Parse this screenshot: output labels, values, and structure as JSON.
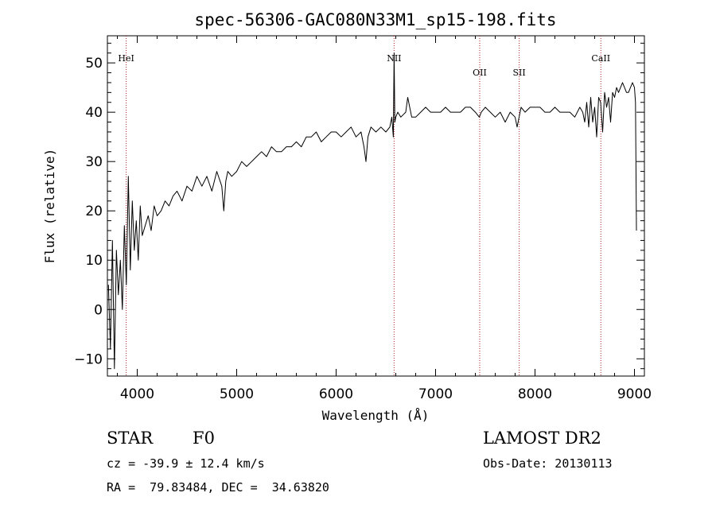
{
  "chart_data": {
    "type": "line",
    "title": "spec-56306-GAC080N33M1_sp15-198.fits",
    "xlabel": "Wavelength (Å)",
    "ylabel": "Flux (relative)",
    "xlim": [
      3700,
      9100
    ],
    "ylim": [
      -13.5,
      55.5
    ],
    "x_ticks": [
      4000,
      5000,
      6000,
      7000,
      8000,
      9000
    ],
    "y_ticks": [
      -10,
      0,
      10,
      20,
      30,
      40,
      50
    ],
    "grid": false,
    "legend": "none",
    "color": "#000000",
    "line_marker_color": "#b22222",
    "spectral_lines": [
      {
        "name": "HeI",
        "x": 3889
      },
      {
        "name": "NII",
        "x": 6583
      },
      {
        "name": "OII",
        "x": 7444
      },
      {
        "name": "SII",
        "x": 7841
      },
      {
        "name": "CaII",
        "x": 8662
      }
    ],
    "series": [
      {
        "x": [
          3710,
          3730,
          3750,
          3770,
          3790,
          3810,
          3830,
          3850,
          3870,
          3890,
          3910,
          3930,
          3950,
          3970,
          3990,
          4010,
          4030,
          4050,
          4080,
          4110,
          4140,
          4170,
          4200,
          4240,
          4280,
          4320,
          4360,
          4400,
          4450,
          4500,
          4550,
          4600,
          4650,
          4700,
          4750,
          4800,
          4850,
          4870,
          4890,
          4910,
          4950,
          5000,
          5050,
          5100,
          5150,
          5200,
          5250,
          5300,
          5350,
          5400,
          5450,
          5500,
          5550,
          5600,
          5650,
          5700,
          5750,
          5800,
          5850,
          5900,
          5950,
          6000,
          6050,
          6100,
          6150,
          6200,
          6250,
          6280,
          6300,
          6320,
          6350,
          6400,
          6450,
          6500,
          6540,
          6560,
          6575,
          6583,
          6590,
          6600,
          6620,
          6650,
          6700,
          6720,
          6740,
          6760,
          6800,
          6850,
          6900,
          6950,
          7000,
          7050,
          7100,
          7150,
          7200,
          7250,
          7300,
          7350,
          7400,
          7440,
          7460,
          7500,
          7550,
          7600,
          7650,
          7700,
          7750,
          7800,
          7820,
          7840,
          7860,
          7900,
          7950,
          8000,
          8050,
          8100,
          8150,
          8200,
          8250,
          8300,
          8350,
          8400,
          8450,
          8480,
          8500,
          8520,
          8540,
          8560,
          8580,
          8600,
          8620,
          8640,
          8660,
          8680,
          8700,
          8720,
          8740,
          8760,
          8780,
          8800,
          8820,
          8840,
          8860,
          8880,
          8900,
          8920,
          8940,
          8960,
          8980,
          9000,
          9010,
          9020
        ],
        "values": [
          5,
          -8,
          14,
          -12,
          12,
          3,
          10,
          0,
          17,
          5,
          27,
          8,
          22,
          12,
          18,
          10,
          21,
          15,
          17,
          19,
          16,
          21,
          19,
          20,
          22,
          21,
          23,
          24,
          22,
          25,
          24,
          27,
          25,
          27,
          24,
          28,
          25,
          20,
          26,
          28,
          27,
          28,
          30,
          29,
          30,
          31,
          32,
          31,
          33,
          32,
          32,
          33,
          33,
          34,
          33,
          35,
          35,
          36,
          34,
          35,
          36,
          36,
          35,
          36,
          37,
          35,
          36,
          33,
          30,
          35,
          37,
          36,
          37,
          36,
          37,
          39,
          35,
          52,
          38,
          39,
          40,
          39,
          40,
          43,
          41,
          39,
          39,
          40,
          41,
          40,
          40,
          40,
          41,
          40,
          40,
          40,
          41,
          41,
          40,
          39,
          40,
          41,
          40,
          39,
          40,
          38,
          40,
          39,
          37,
          39,
          41,
          40,
          41,
          41,
          41,
          40,
          40,
          41,
          40,
          40,
          40,
          39,
          41,
          40,
          38,
          42,
          37,
          43,
          38,
          41,
          35,
          43,
          42,
          36,
          44,
          41,
          43,
          38,
          44,
          43,
          45,
          44,
          45,
          46,
          45,
          44,
          44,
          45,
          46,
          45,
          42,
          16
        ]
      }
    ]
  },
  "info": {
    "object_class": "STAR",
    "subclass": "F0",
    "survey": "LAMOST DR2",
    "redshift": "cz = -39.9 ± 12.4 km/s",
    "obs_date": "Obs-Date: 20130113",
    "coords": "RA =  79.83484, DEC =  34.63820"
  }
}
